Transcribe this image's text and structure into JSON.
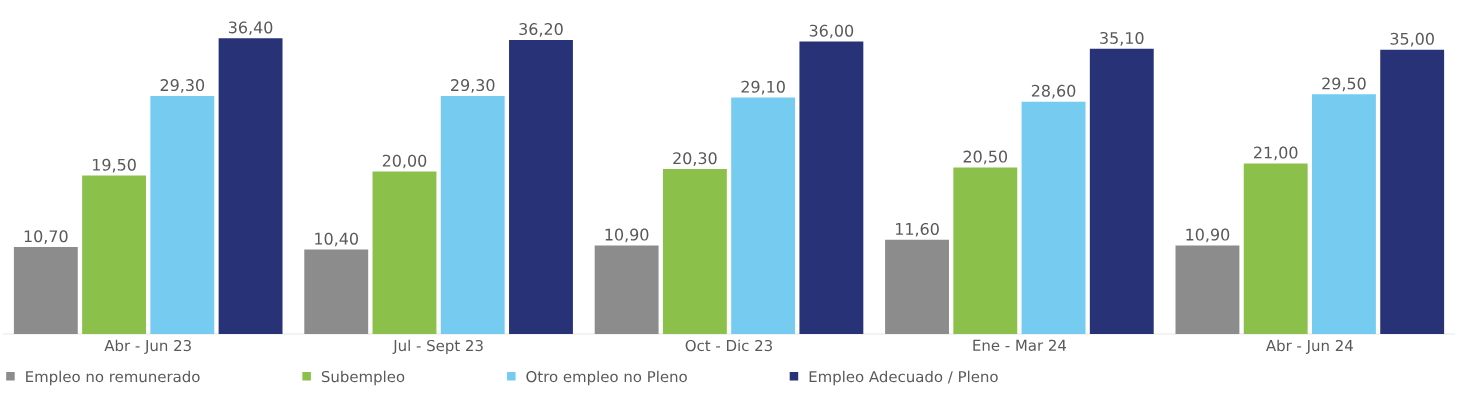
{
  "chart_data": {
    "type": "bar",
    "categories": [
      "Abr - Jun 23",
      "Jul - Sept 23",
      "Oct - Dic 23",
      "Ene - Mar 24",
      "Abr - Jun 24"
    ],
    "series": [
      {
        "name": "Empleo no remunerado",
        "color": "#8c8c8c",
        "values": [
          10.7,
          10.4,
          10.9,
          11.6,
          10.9
        ],
        "value_labels": [
          "10,70",
          "10,40",
          "10,90",
          "11,60",
          "10,90"
        ]
      },
      {
        "name": "Subempleo",
        "color": "#8bc04a",
        "values": [
          19.5,
          20.0,
          20.3,
          20.5,
          21.0
        ],
        "value_labels": [
          "19,50",
          "20,00",
          "20,30",
          "20,50",
          "21,00"
        ]
      },
      {
        "name": "Otro empleo no Pleno",
        "color": "#75cbf0",
        "values": [
          29.3,
          29.3,
          29.1,
          28.6,
          29.5
        ],
        "value_labels": [
          "29,30",
          "29,30",
          "29,10",
          "28,60",
          "29,50"
        ]
      },
      {
        "name": "Empleo Adecuado / Pleno",
        "color": "#283276",
        "values": [
          36.4,
          36.2,
          36.0,
          35.1,
          35.0
        ],
        "value_labels": [
          "36,40",
          "36,20",
          "36,00",
          "35,10",
          "35,00"
        ]
      }
    ],
    "legend": "bottom"
  }
}
